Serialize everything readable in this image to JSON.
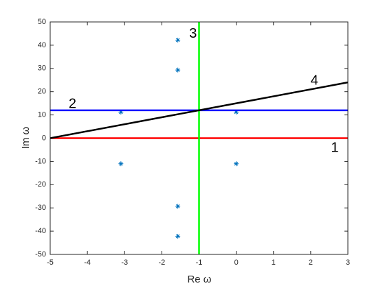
{
  "chart_data": {
    "type": "line",
    "xlabel": "Re ω",
    "ylabel": "Im ω",
    "xlim": [
      -5,
      3
    ],
    "xticks": [
      -5,
      -4,
      -3,
      -2,
      -1,
      0,
      1,
      2,
      3
    ],
    "ylim": [
      -50,
      50
    ],
    "yticks": [
      -50,
      -40,
      -30,
      -20,
      -10,
      0,
      10,
      20,
      30,
      40,
      50
    ],
    "series": [
      {
        "color": "#0072bd",
        "marker": "*",
        "x": [
          -1.57,
          -1.57,
          -3.1,
          0,
          -3.1,
          0,
          -1.57,
          -1.57
        ],
        "values": [
          42.2,
          29.3,
          11.2,
          11.2,
          -11,
          -11,
          -29.3,
          -42.2
        ]
      },
      {
        "color": "#ff0000",
        "x": [
          -5,
          3
        ],
        "values": [
          0,
          0
        ]
      },
      {
        "color": "#0000ff",
        "x": [
          -5,
          3
        ],
        "values": [
          12,
          12
        ]
      },
      {
        "color": "#00ff00",
        "x": [
          -1,
          -1
        ],
        "values": [
          -50,
          50
        ]
      },
      {
        "color": "#000000",
        "x": [
          -5,
          3
        ],
        "values": [
          0,
          24
        ]
      }
    ],
    "annotations": [
      "1",
      "2",
      "3",
      "4"
    ]
  }
}
